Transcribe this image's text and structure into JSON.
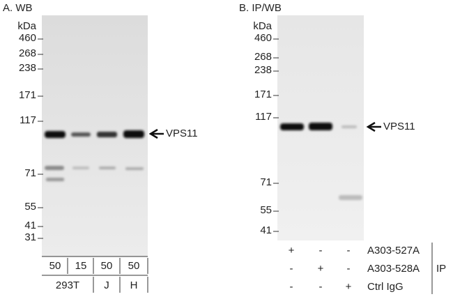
{
  "panel_a": {
    "title": "A. WB",
    "unit": "kDa",
    "markers": [
      460,
      268,
      238,
      171,
      117,
      71,
      55,
      41,
      31
    ],
    "band_label": "VPS11",
    "amounts": [
      50,
      15,
      50,
      50
    ],
    "cell_lines": [
      "293T",
      "J",
      "H"
    ]
  },
  "panel_b": {
    "title": "B. IP/WB",
    "unit": "kDa",
    "markers": [
      460,
      268,
      238,
      171,
      117,
      71,
      55,
      41
    ],
    "band_label": "VPS11",
    "ip_rows": [
      {
        "label": "A303-527A",
        "signs": [
          "+",
          "-",
          "-"
        ]
      },
      {
        "label": "A303-528A",
        "signs": [
          "-",
          "+",
          "-"
        ]
      },
      {
        "label": "Ctrl IgG",
        "signs": [
          "-",
          "-",
          "+"
        ]
      }
    ],
    "ip_label": "IP"
  }
}
